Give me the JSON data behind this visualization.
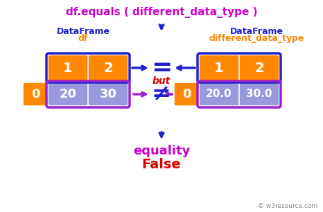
{
  "title": "df.equals ( different_data_type )",
  "title_color": "#cc00cc",
  "arrow_color": "#2222cc",
  "arrow_color_purple": "#9922cc",
  "orange": "#ff8800",
  "purple": "#9999dd",
  "blue_border": "#2222cc",
  "purple_border": "#9922cc",
  "red": "#dd0000",
  "df_label": "DataFrame",
  "df_sublabel": "df",
  "right_label": "DataFrame",
  "right_sublabel": "different_data_type",
  "col1": "1",
  "col2": "2",
  "idx": "0",
  "val1": "20",
  "val2": "30",
  "val1f": "20.0",
  "val2f": "30.0",
  "eq_label": "equality",
  "false_label": "False",
  "watermark": "© w3resource.com"
}
